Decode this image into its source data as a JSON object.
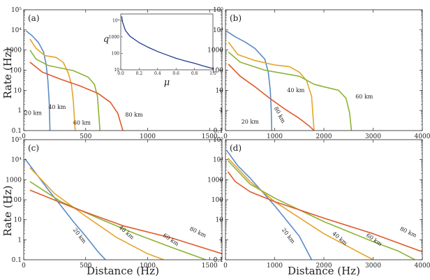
{
  "chart_data": [
    {
      "type": "line",
      "panel_label": "(a)",
      "xlim": [
        0,
        1600
      ],
      "ylim": [
        0.1,
        100000
      ],
      "y_scale": "log",
      "xticks": [
        0,
        500,
        1000,
        1500
      ],
      "series": [
        {
          "name": "20 km",
          "color": "#5b8bc5",
          "label_at": [
            75,
            0.6
          ],
          "label_rot": 0,
          "points": [
            [
              20,
              9000
            ],
            [
              70,
              5000
            ],
            [
              120,
              2300
            ],
            [
              160,
              800
            ],
            [
              180,
              200
            ],
            [
              195,
              30
            ],
            [
              205,
              3
            ],
            [
              212,
              0.1
            ]
          ]
        },
        {
          "name": "40 km",
          "color": "#e5a32b",
          "label_at": [
            270,
            1.2
          ],
          "label_rot": 0,
          "points": [
            [
              50,
              3500
            ],
            [
              100,
              1200
            ],
            [
              170,
              530
            ],
            [
              260,
              430
            ],
            [
              320,
              240
            ],
            [
              360,
              70
            ],
            [
              385,
              20
            ],
            [
              400,
              3
            ],
            [
              415,
              0.1
            ]
          ]
        },
        {
          "name": "60 km",
          "color": "#8db336",
          "label_at": [
            470,
            0.2
          ],
          "label_rot": 0,
          "points": [
            [
              50,
              1000
            ],
            [
              100,
              350
            ],
            [
              200,
              170
            ],
            [
              400,
              95
            ],
            [
              520,
              45
            ],
            [
              570,
              20
            ],
            [
              595,
              5
            ],
            [
              615,
              0.1
            ]
          ]
        },
        {
          "name": "80 km",
          "color": "#e05a2b",
          "label_at": [
            890,
            0.5
          ],
          "label_rot": 0,
          "points": [
            [
              50,
              250
            ],
            [
              150,
              80
            ],
            [
              300,
              35
            ],
            [
              450,
              17
            ],
            [
              600,
              7
            ],
            [
              700,
              2.5
            ],
            [
              760,
              0.7
            ],
            [
              800,
              0.1
            ]
          ]
        }
      ],
      "inset": {
        "xlabel": "μ",
        "ylabel": "q",
        "xlim": [
          0,
          1
        ],
        "ylim": [
          10,
          25000
        ],
        "y_scale": "log",
        "xticks": [
          0.0,
          0.2,
          0.4,
          0.6,
          0.8,
          1.0
        ],
        "yticks": [
          10,
          100,
          1000,
          10000
        ],
        "yticklabels": [
          "10",
          "100",
          "1000",
          "10⁴"
        ],
        "color": "#1f3a8f",
        "points": [
          [
            0.01,
            18000
          ],
          [
            0.02,
            8000
          ],
          [
            0.05,
            2500
          ],
          [
            0.1,
            1100
          ],
          [
            0.2,
            450
          ],
          [
            0.3,
            230
          ],
          [
            0.4,
            130
          ],
          [
            0.5,
            80
          ],
          [
            0.6,
            50
          ],
          [
            0.7,
            35
          ],
          [
            0.8,
            25
          ],
          [
            0.9,
            17
          ],
          [
            1.0,
            12
          ]
        ]
      }
    },
    {
      "type": "line",
      "panel_label": "(b)",
      "xlim": [
        0,
        4000
      ],
      "ylim": [
        0.1,
        100000
      ],
      "y_scale": "log",
      "xticks": [
        0,
        1000,
        2000,
        3000,
        4000
      ],
      "series": [
        {
          "name": "20 km",
          "color": "#5b8bc5",
          "label_at": [
            500,
            0.22
          ],
          "label_rot": 0,
          "points": [
            [
              30,
              8500
            ],
            [
              200,
              4500
            ],
            [
              400,
              2500
            ],
            [
              600,
              1200
            ],
            [
              800,
              350
            ],
            [
              870,
              80
            ],
            [
              910,
              10
            ],
            [
              930,
              1
            ],
            [
              940,
              0.1
            ]
          ]
        },
        {
          "name": "40 km",
          "color": "#e5a32b",
          "label_at": [
            1430,
            8
          ],
          "label_rot": 0,
          "points": [
            [
              60,
              2500
            ],
            [
              250,
              600
            ],
            [
              600,
              300
            ],
            [
              1000,
              180
            ],
            [
              1300,
              150
            ],
            [
              1500,
              80
            ],
            [
              1650,
              30
            ],
            [
              1750,
              5
            ],
            [
              1800,
              0.1
            ]
          ]
        },
        {
          "name": "60 km",
          "color": "#8db336",
          "label_at": [
            2820,
            4
          ],
          "label_rot": 0,
          "points": [
            [
              60,
              800
            ],
            [
              300,
              250
            ],
            [
              800,
              100
            ],
            [
              1500,
              50
            ],
            [
              1800,
              20
            ],
            [
              2000,
              15
            ],
            [
              2300,
              10
            ],
            [
              2450,
              4
            ],
            [
              2520,
              0.8
            ],
            [
              2560,
              0.1
            ]
          ]
        },
        {
          "name": "80 km",
          "color": "#e05a2b",
          "label_at": [
            1070,
            0.55
          ],
          "label_rot": 62,
          "points": [
            [
              60,
              200
            ],
            [
              300,
              50
            ],
            [
              600,
              15
            ],
            [
              900,
              4
            ],
            [
              1200,
              1.2
            ],
            [
              1500,
              0.4
            ],
            [
              1700,
              0.17
            ],
            [
              1800,
              0.1
            ]
          ]
        }
      ]
    },
    {
      "type": "line",
      "panel_label": "(c)",
      "xlim": [
        0,
        1600
      ],
      "ylim": [
        0.1,
        100000
      ],
      "y_scale": "log",
      "xticks": [
        0,
        500,
        1000,
        1500
      ],
      "series": [
        {
          "name": "20 km",
          "color": "#5b8bc5",
          "label_at": [
            440,
            1.4
          ],
          "label_rot": 52,
          "points": [
            [
              10,
              11000
            ],
            [
              100,
              2000
            ],
            [
              200,
              300
            ],
            [
              300,
              50
            ],
            [
              400,
              8
            ],
            [
              500,
              1.5
            ],
            [
              600,
              0.25
            ],
            [
              660,
              0.1
            ]
          ]
        },
        {
          "name": "40 km",
          "color": "#e5a32b",
          "label_at": [
            820,
            2
          ],
          "label_rot": 40,
          "points": [
            [
              50,
              4000
            ],
            [
              250,
              200
            ],
            [
              500,
              15
            ],
            [
              750,
              1.3
            ],
            [
              1000,
              0.2
            ],
            [
              1130,
              0.1
            ]
          ]
        },
        {
          "name": "60 km",
          "color": "#8db336",
          "label_at": [
            1180,
            0.85
          ],
          "label_rot": 34,
          "points": [
            [
              50,
              800
            ],
            [
              300,
              80
            ],
            [
              600,
              12
            ],
            [
              900,
              2
            ],
            [
              1200,
              0.4
            ],
            [
              1470,
              0.1
            ]
          ]
        },
        {
          "name": "80 km",
          "color": "#e05a2b",
          "label_at": [
            1400,
            2
          ],
          "label_rot": 25,
          "points": [
            [
              50,
              300
            ],
            [
              400,
              40
            ],
            [
              800,
              5
            ],
            [
              1200,
              1.2
            ],
            [
              1600,
              0.2
            ]
          ]
        }
      ]
    },
    {
      "type": "line",
      "panel_label": "(d)",
      "xlim": [
        0,
        4000
      ],
      "ylim": [
        0.1,
        100000
      ],
      "y_scale": "log",
      "xticks": [
        0,
        1000,
        2000,
        3000,
        4000
      ],
      "series": [
        {
          "name": "20 km",
          "color": "#5b8bc5",
          "label_at": [
            1250,
            1.4
          ],
          "label_rot": 52,
          "points": [
            [
              20,
              30000
            ],
            [
              250,
              5000
            ],
            [
              500,
              1200
            ],
            [
              1000,
              50
            ],
            [
              1500,
              1.5
            ],
            [
              1750,
              0.1
            ]
          ]
        },
        {
          "name": "40 km",
          "color": "#e5a32b",
          "label_at": [
            2300,
            1
          ],
          "label_rot": 40,
          "points": [
            [
              50,
              12000
            ],
            [
              500,
              800
            ],
            [
              1000,
              80
            ],
            [
              2000,
              2
            ],
            [
              3000,
              0.1
            ]
          ]
        },
        {
          "name": "60 km",
          "color": "#8db336",
          "label_at": [
            3000,
            0.85
          ],
          "label_rot": 34,
          "points": [
            [
              50,
              9000
            ],
            [
              500,
              600
            ],
            [
              1000,
              120
            ],
            [
              2000,
              8
            ],
            [
              3000,
              0.8
            ],
            [
              3500,
              0.28
            ],
            [
              3850,
              0.1
            ]
          ]
        },
        {
          "name": "80 km",
          "color": "#e05a2b",
          "label_at": [
            3700,
            2
          ],
          "label_rot": 25,
          "points": [
            [
              50,
              2500
            ],
            [
              200,
              800
            ],
            [
              500,
              250
            ],
            [
              1000,
              80
            ],
            [
              2000,
              12
            ],
            [
              3000,
              2
            ],
            [
              4000,
              0.25
            ]
          ]
        }
      ]
    }
  ],
  "axes": {
    "ylabel": "Rate (Hz)",
    "xlabel": "Distance (Hz)",
    "yticks": [
      0.1,
      1,
      10,
      100,
      1000,
      10000,
      100000
    ],
    "yticklabels": [
      "0.1",
      "1",
      "10",
      "100",
      "1000",
      "10⁴",
      "10⁵"
    ]
  }
}
